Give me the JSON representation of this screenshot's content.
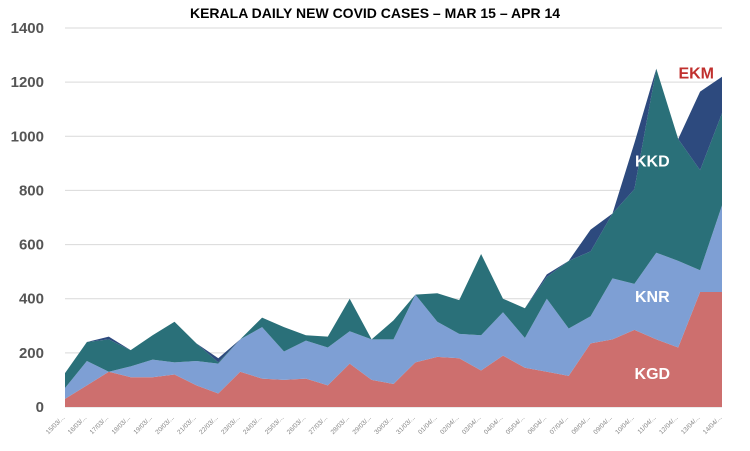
{
  "chart_data": {
    "type": "area",
    "stacked": true,
    "title": "KERALA DAILY NEW COVID CASES – MAR 15 – APR 14",
    "xlabel": "",
    "ylabel": "",
    "ylim": [
      0,
      1400
    ],
    "yticks": [
      0,
      200,
      400,
      600,
      800,
      1000,
      1200,
      1400
    ],
    "grid": true,
    "x": [
      "15/03/...",
      "16/03/...",
      "17/03/...",
      "18/03/...",
      "19/03/...",
      "20/03/...",
      "21/03/...",
      "22/03/...",
      "23/03/...",
      "24/03/...",
      "25/03/...",
      "26/03/...",
      "27/03/...",
      "28/03/...",
      "29/03/...",
      "30/03/...",
      "31/03/...",
      "01/04/...",
      "02/04/...",
      "03/04/...",
      "04/04/...",
      "05/04/...",
      "06/04/...",
      "07/04/...",
      "08/04/...",
      "09/04/...",
      "10/04/...",
      "11/04/...",
      "12/04/...",
      "13/04/...",
      "14/04/..."
    ],
    "series": [
      {
        "name": "KGD",
        "color": "#cd6f6e",
        "label_color": "#ffffff",
        "values": [
          30,
          80,
          130,
          110,
          110,
          120,
          80,
          50,
          130,
          105,
          100,
          105,
          80,
          160,
          100,
          85,
          165,
          185,
          180,
          135,
          190,
          145,
          130,
          115,
          235,
          250,
          285,
          250,
          220,
          425,
          425
        ]
      },
      {
        "name": "KNR",
        "color": "#7e9fd4",
        "label_color": "#ffffff",
        "values": [
          40,
          90,
          0,
          40,
          65,
          45,
          90,
          110,
          120,
          190,
          105,
          140,
          140,
          120,
          150,
          165,
          250,
          130,
          90,
          130,
          160,
          110,
          270,
          175,
          100,
          225,
          170,
          320,
          320,
          80,
          320
        ]
      },
      {
        "name": "KKD",
        "color": "#2a7079",
        "label_color": "#ffffff",
        "values": [
          55,
          70,
          120,
          60,
          90,
          150,
          65,
          5,
          0,
          35,
          90,
          20,
          40,
          120,
          0,
          70,
          0,
          105,
          125,
          300,
          50,
          110,
          80,
          250,
          240,
          240,
          350,
          680,
          450,
          370,
          340
        ]
      },
      {
        "name": "EKM",
        "color": "#2d4a7e",
        "label_color": "#c0302e",
        "values": [
          0,
          0,
          10,
          0,
          0,
          0,
          0,
          15,
          0,
          0,
          0,
          0,
          0,
          0,
          0,
          0,
          0,
          0,
          0,
          0,
          0,
          0,
          10,
          0,
          80,
          0,
          170,
          0,
          0,
          290,
          135
        ]
      }
    ]
  }
}
